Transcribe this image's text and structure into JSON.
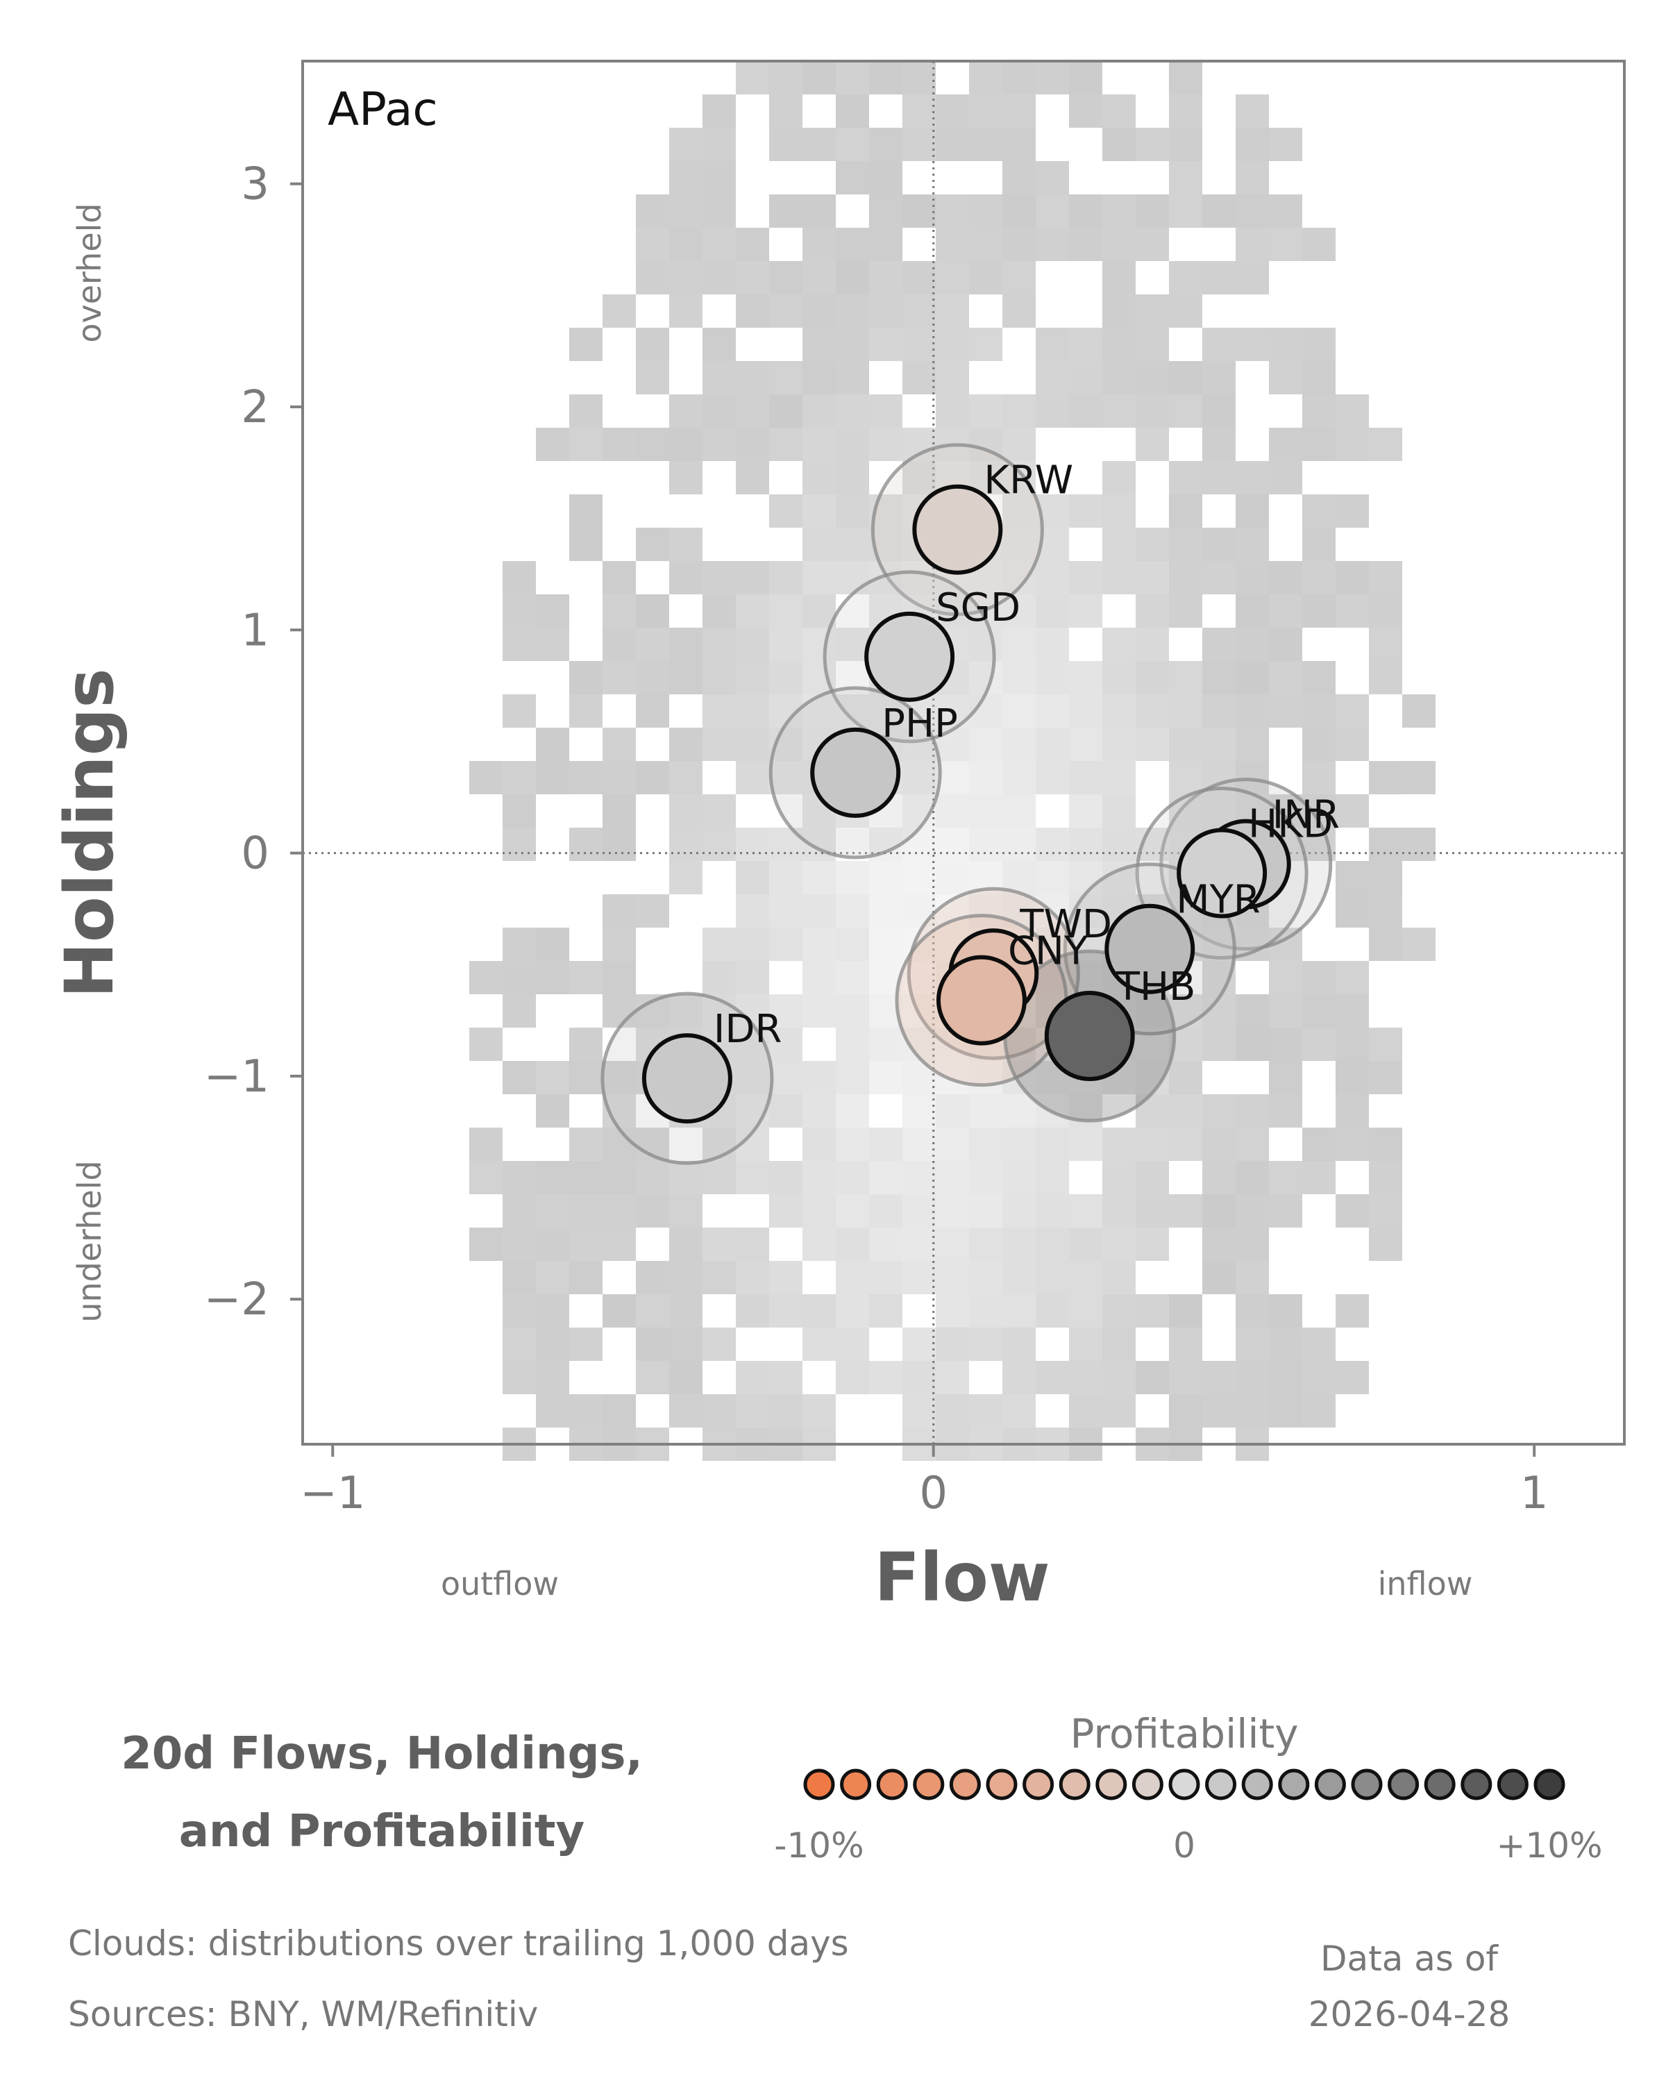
{
  "chart_data": {
    "type": "scatter",
    "panel_label": "APac",
    "xlabel": "Flow",
    "ylabel": "Holdings",
    "x_side_labels": {
      "left": "outflow",
      "right": "inflow"
    },
    "y_side_labels": {
      "top": "overheld",
      "bottom": "underheld"
    },
    "xlim": [
      -1.05,
      1.15
    ],
    "ylim": [
      -2.65,
      3.55
    ],
    "xticks": [
      {
        "v": -1,
        "label": "−1"
      },
      {
        "v": 0,
        "label": "0"
      },
      {
        "v": 1,
        "label": "1"
      }
    ],
    "yticks": [
      {
        "v": -2,
        "label": "−2"
      },
      {
        "v": -1,
        "label": "−1"
      },
      {
        "v": 0,
        "label": "0"
      },
      {
        "v": 1,
        "label": "1"
      },
      {
        "v": 2,
        "label": "2"
      },
      {
        "v": 3,
        "label": "3"
      }
    ],
    "reference_lines": {
      "x": 0,
      "y": 0,
      "style": "dotted"
    },
    "background": "2D histogram clouds (grey)",
    "points": [
      {
        "label": "KRW",
        "x": 0.04,
        "y": 1.45,
        "profit": -0.1
      },
      {
        "label": "SGD",
        "x": -0.04,
        "y": 0.88,
        "profit": 0.05
      },
      {
        "label": "PHP",
        "x": -0.13,
        "y": 0.36,
        "profit": 0.12
      },
      {
        "label": "IDR",
        "x": -0.41,
        "y": -1.01,
        "profit": 0.1
      },
      {
        "label": "INR",
        "x": 0.52,
        "y": -0.05,
        "profit": 0.12
      },
      {
        "label": "HKD",
        "x": 0.48,
        "y": -0.09,
        "profit": 0.05
      },
      {
        "label": "MYR",
        "x": 0.36,
        "y": -0.43,
        "profit": 0.2
      },
      {
        "label": "TWD",
        "x": 0.1,
        "y": -0.54,
        "profit": -0.3
      },
      {
        "label": "CNY",
        "x": 0.08,
        "y": -0.66,
        "profit": -0.35
      },
      {
        "label": "THB",
        "x": 0.26,
        "y": -0.82,
        "profit": 0.75
      }
    ]
  },
  "legend": {
    "title": "20d Flows, Holdings, and Profitability",
    "profitability_title": "Profitability",
    "tick_min": "-10%",
    "tick_mid": "0",
    "tick_max": "+10%",
    "scale_low_color": "#f07a45",
    "scale_mid_color": "#d9d9d9",
    "scale_high_color": "#3d3d3d"
  },
  "footer": {
    "clouds": "Clouds:  distributions over trailing 1,000 days",
    "sources": "Sources:  BNY, WM/Refinitiv",
    "data_as_of_label": "Data as of",
    "data_as_of_date": "2026-04-28"
  }
}
